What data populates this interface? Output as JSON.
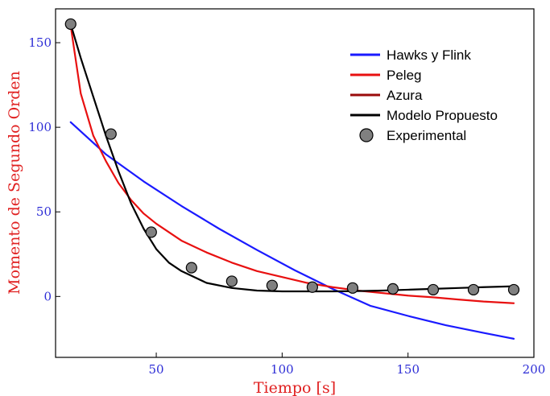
{
  "chart_data": {
    "type": "line",
    "xlabel": "Tiempo [s]",
    "ylabel": "Momento de Segundo Orden",
    "xlim": [
      10,
      200
    ],
    "ylim": [
      -36,
      170
    ],
    "x_ticks": [
      "50",
      "100",
      "150",
      "200"
    ],
    "y_ticks": [
      "0",
      "50",
      "100",
      "150"
    ],
    "x_tick_values": [
      50,
      100,
      150,
      200
    ],
    "y_tick_values": [
      0,
      50,
      100,
      150
    ],
    "legend_position": "top-right",
    "grid": false,
    "colors": {
      "tick_labels": "#2e2ed6",
      "axis_titles": "#e02020",
      "azura_label": "#e02020"
    },
    "series": [
      {
        "name": "Hawks y Flink",
        "kind": "line",
        "color": "#1a1aff",
        "x": [
          16,
          30,
          45,
          60,
          75,
          90,
          105,
          120,
          135,
          150,
          165,
          180,
          192
        ],
        "y": [
          103,
          84,
          68,
          53.5,
          40,
          27.5,
          15.5,
          4.5,
          -5.5,
          -11.5,
          -17,
          -21.5,
          -25
        ]
      },
      {
        "name": "Peleg",
        "kind": "line",
        "color": "#e81010",
        "x": [
          16,
          20,
          25,
          30,
          35,
          40,
          45,
          50,
          60,
          70,
          80,
          90,
          100,
          110,
          120,
          130,
          140,
          150,
          160,
          170,
          180,
          192
        ],
        "y": [
          160,
          120,
          95,
          80,
          67,
          57,
          49,
          43,
          33,
          26,
          20,
          15,
          11.5,
          8,
          5.5,
          3.5,
          2,
          0.5,
          -0.5,
          -1.8,
          -3,
          -4
        ]
      },
      {
        "name": "Azura",
        "kind": "line",
        "color": "#9a0a0a",
        "x": [],
        "y": []
      },
      {
        "name": "Modelo Propuesto",
        "kind": "line",
        "color": "#000000",
        "x": [
          16,
          20,
          25,
          30,
          35,
          40,
          45,
          50,
          55,
          60,
          70,
          80,
          90,
          100,
          110,
          120,
          130,
          140,
          150,
          160,
          170,
          180,
          192
        ],
        "y": [
          161,
          141,
          118,
          95,
          74,
          55,
          40,
          28,
          20,
          15,
          8,
          5,
          3.5,
          3,
          3,
          3,
          3.2,
          3.5,
          4,
          4.5,
          5,
          5.5,
          6
        ]
      },
      {
        "name": "Experimental",
        "kind": "scatter",
        "color": "#808080",
        "x": [
          16,
          32,
          48,
          64,
          80,
          96,
          112,
          128,
          144,
          160,
          176,
          192
        ],
        "y": [
          161,
          96,
          38,
          17,
          9,
          6.5,
          5.5,
          5,
          4.5,
          4,
          4,
          4
        ]
      }
    ]
  }
}
